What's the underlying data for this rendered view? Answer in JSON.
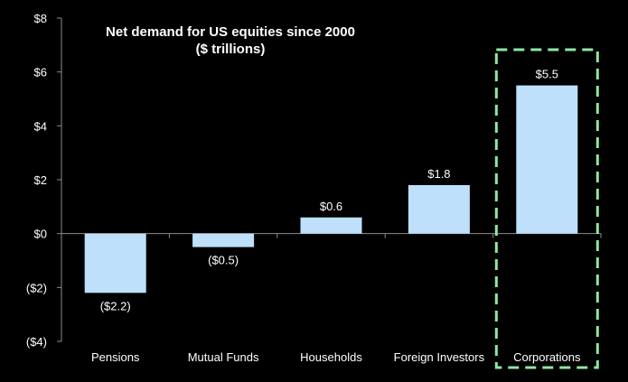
{
  "chart_data": {
    "type": "bar",
    "title": "Net demand for US equities since 2000",
    "subtitle": "($ trillions)",
    "categories": [
      "Pensions",
      "Mutual Funds",
      "Households",
      "Foreign Investors",
      "Corporations"
    ],
    "values": [
      -2.2,
      -0.5,
      0.6,
      1.8,
      5.5
    ],
    "value_labels": [
      "($2.2)",
      "($0.5)",
      "$0.6",
      "$1.8",
      "$5.5"
    ],
    "ylim": [
      -4,
      8
    ],
    "yticks": [
      8,
      6,
      4,
      2,
      0,
      -2,
      -4
    ],
    "ytick_labels": [
      "$8",
      "$6",
      "$4",
      "$2",
      "$0",
      "($2)",
      "($4)"
    ],
    "xlabel": "",
    "ylabel": "",
    "grid": false,
    "legend": "none",
    "highlighted_category": "Corporations",
    "colors": {
      "background": "#000000",
      "bar_fill": "#bfe0fb",
      "text": "#ffffff",
      "axis": "#8c8c8c",
      "highlight_box": "#8fe6a2"
    }
  }
}
